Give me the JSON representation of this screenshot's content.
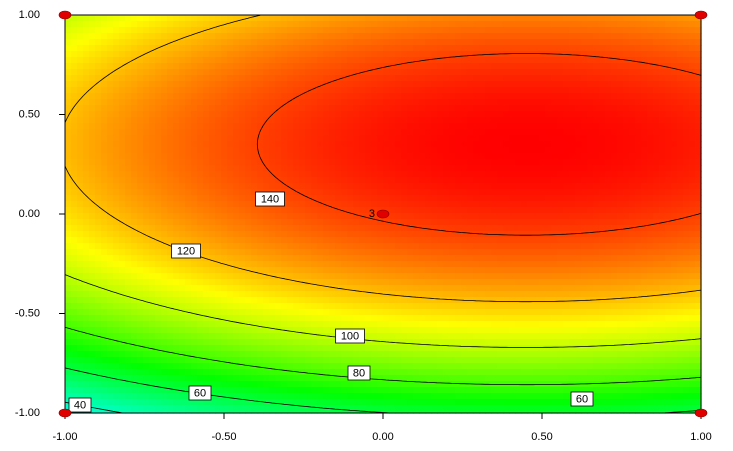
{
  "chart_data": {
    "type": "contour",
    "xlim": [
      -1,
      1
    ],
    "ylim": [
      -1,
      1
    ],
    "xticks": [
      {
        "value": -1,
        "label": "-1.00"
      },
      {
        "value": -0.5,
        "label": "-0.50"
      },
      {
        "value": 0,
        "label": "0.00"
      },
      {
        "value": 0.5,
        "label": "0.50"
      },
      {
        "value": 1,
        "label": "1.00"
      }
    ],
    "yticks": [
      {
        "value": -1,
        "label": "-1.00"
      },
      {
        "value": -0.5,
        "label": "-0.50"
      },
      {
        "value": 0,
        "label": "0.00"
      },
      {
        "value": 0.5,
        "label": "0.50"
      },
      {
        "value": 1,
        "label": "1.00"
      }
    ],
    "contour_levels": [
      40,
      60,
      80,
      100,
      120,
      140
    ],
    "points": {
      "x": [
        -1,
        -1,
        1,
        1,
        0
      ],
      "y": [
        1,
        -1,
        1,
        -1,
        0
      ],
      "labels": [
        null,
        null,
        null,
        null,
        "3"
      ],
      "color": "#e00000"
    }
  }
}
